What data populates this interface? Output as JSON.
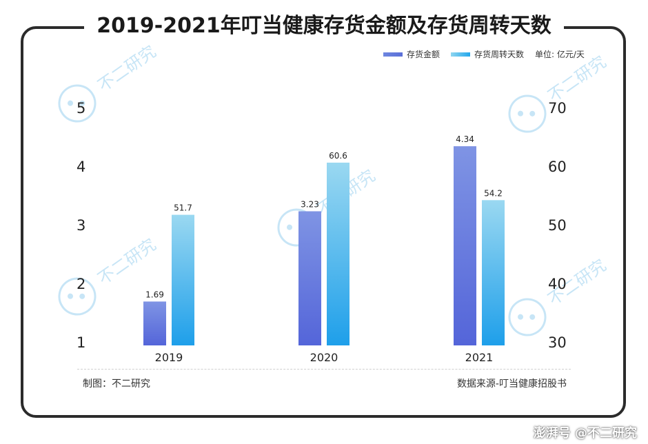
{
  "chart_data": {
    "type": "bar",
    "title": "2019-2021年叮当健康存货金额及存货周转天数",
    "categories": [
      "2019",
      "2020",
      "2021"
    ],
    "series": [
      {
        "name": "存货金额",
        "values": [
          1.69,
          3.23,
          4.34
        ],
        "labels": [
          "1.69",
          "3.23",
          "4.34"
        ],
        "axis": "left"
      },
      {
        "name": "存货周转天数",
        "values": [
          51.7,
          60.6,
          54.2
        ],
        "labels": [
          "51.7",
          "60.6",
          "54.2"
        ],
        "axis": "right"
      }
    ],
    "y_left": {
      "min": 1,
      "max": 5,
      "ticks": [
        "1",
        "2",
        "3",
        "4",
        "5"
      ]
    },
    "y_right": {
      "min": 30,
      "max": 70,
      "ticks": [
        "30",
        "40",
        "50",
        "60",
        "70"
      ]
    },
    "unit_note": "单位: 亿元/天",
    "legend_position": "top-right",
    "grid": false
  },
  "footer": {
    "credit": "制图：不二研究",
    "source": "数据来源-叮当健康招股书"
  },
  "watermark": {
    "text": "不二研究",
    "site_tag": "澎湃号 @不二研究"
  },
  "colors": {
    "series_a_top": "#7f94e4",
    "series_a_bottom": "#5465d9",
    "series_b_top": "#9ad8f1",
    "series_b_bottom": "#1e9fea"
  }
}
